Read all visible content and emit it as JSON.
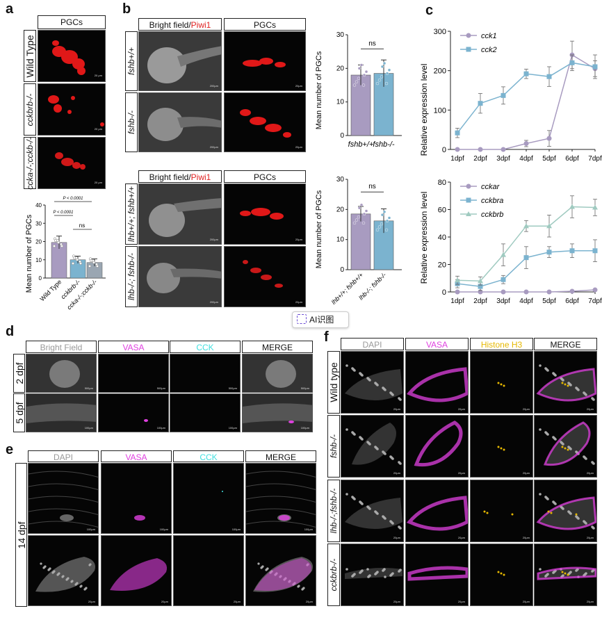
{
  "panels": {
    "a": {
      "label": "a",
      "header": "PGCs",
      "rows": [
        "Wild Type",
        "cckbrb-/-",
        "ccka-/-;cckb-/-"
      ],
      "scalebar": "20 μm",
      "chart_data": {
        "type": "bar",
        "categories": [
          "Wild Type",
          "cckbrb-/-",
          "ccka-/-;cckb-/-"
        ],
        "values": [
          19.5,
          10,
          8.5
        ],
        "errors": [
          3.5,
          2,
          2
        ],
        "ylabel": "Mean number of PGCs",
        "ylim": [
          0,
          40
        ],
        "yticks": [
          0,
          10,
          20,
          30,
          40
        ],
        "significance": [
          "P < 0.0001",
          "P < 0.0001",
          "ns"
        ],
        "colors": [
          "#a89bc0",
          "#7bb3cf",
          "#9aa6b2"
        ]
      }
    },
    "b": {
      "label": "b",
      "headers": {
        "bright_field": "Bright field/",
        "piwi": "Piwi1",
        "pgcs": "PGCs"
      },
      "rows_top": [
        "fshb+/+",
        "fshb-/-"
      ],
      "rows_bottom": [
        "lhb+/+; fshb+/+",
        "lhb-/-; fshb-/-"
      ],
      "scalebar_bf": "200μm",
      "scalebar_pgc": "20μm",
      "chart_top": {
        "type": "bar",
        "categories": [
          "fshb+/+",
          "fshb-/-"
        ],
        "values": [
          18,
          18.5
        ],
        "errors": [
          3,
          4
        ],
        "ylabel": "Mean number of PGCs",
        "ylim": [
          0,
          30
        ],
        "yticks": [
          0,
          10,
          20,
          30
        ],
        "significance": "ns"
      },
      "chart_bottom": {
        "type": "bar",
        "categories": [
          "lhb+/+; fshb+/+",
          "lhb-/-; fshb-/-"
        ],
        "values": [
          18.5,
          16.2
        ],
        "errors": [
          2.5,
          4
        ],
        "ylabel": "Mean number of PGCs",
        "ylim": [
          0,
          30
        ],
        "yticks": [
          0,
          10,
          20,
          30
        ],
        "significance": "ns"
      }
    },
    "c": {
      "label": "c",
      "chart_data": [
        {
          "type": "line",
          "categories": [
            "1dpf",
            "2dpf",
            "3dpf",
            "4dpf",
            "5dpf",
            "6dpf",
            "7dpf"
          ],
          "series": [
            {
              "name": "cck1",
              "values": [
                0,
                0,
                0,
                15,
                28,
                240,
                205
              ],
              "errors": [
                0,
                0,
                0,
                8,
                20,
                35,
                20
              ],
              "color": "#a89bc0",
              "marker": "circle"
            },
            {
              "name": "cck2",
              "values": [
                42,
                117,
                137,
                192,
                185,
                220,
                210
              ],
              "errors": [
                12,
                25,
                22,
                12,
                25,
                20,
                30
              ],
              "color": "#7bb3cf",
              "marker": "square"
            }
          ],
          "ylabel": "Relative expression level",
          "ylim": [
            0,
            300
          ],
          "yticks": [
            0,
            100,
            200,
            300
          ],
          "legend": "top-left"
        },
        {
          "type": "line",
          "categories": [
            "1dpf",
            "2dpf",
            "3dpf",
            "4dpf",
            "5dpf",
            "6dpf",
            "7dpf"
          ],
          "series": [
            {
              "name": "cckar",
              "values": [
                0,
                0,
                0,
                0,
                0,
                0.5,
                1.5
              ],
              "errors": [
                0,
                0,
                0,
                0,
                0,
                0.5,
                0.5
              ],
              "color": "#a89bc0",
              "marker": "circle"
            },
            {
              "name": "cckbra",
              "values": [
                6,
                4,
                9,
                25,
                29,
                30,
                30
              ],
              "errors": [
                3,
                3,
                3,
                8,
                4,
                5,
                8
              ],
              "color": "#7bb3cf",
              "marker": "square"
            },
            {
              "name": "cckbrb",
              "values": [
                8.5,
                8,
                27,
                48,
                48,
                62,
                61.5
              ],
              "errors": [
                3,
                3,
                8,
                4,
                8,
                8,
                6
              ],
              "color": "#9fcac0",
              "marker": "triangle"
            }
          ],
          "ylabel": "Relative expression level",
          "ylim": [
            0,
            80
          ],
          "yticks": [
            0,
            20,
            40,
            60,
            80
          ],
          "legend": "top-left"
        }
      ]
    },
    "d": {
      "label": "d",
      "headers": [
        "Bright Field",
        "VASA",
        "CCK",
        "MERGE"
      ],
      "rows": [
        "2 dpf",
        "5 dpf"
      ],
      "scalebars": [
        "500μm",
        "100μm"
      ]
    },
    "e": {
      "label": "e",
      "headers": [
        "DAPI",
        "VASA",
        "CCK",
        "MERGE"
      ],
      "row": "14 dpf",
      "scalebars": [
        "100μm",
        "20μm"
      ]
    },
    "f": {
      "label": "f",
      "headers": [
        "DAPI",
        "VASA",
        "Histone H3",
        "MERGE"
      ],
      "rows": [
        "Wild type",
        "fshb-/-",
        "lhb-/-;fshb-/-",
        "cckbrb-/-"
      ],
      "scalebar": "20μm"
    }
  },
  "colors": {
    "vasa": "#e040e0",
    "cck": "#40e0e0",
    "histone": "#e6b800",
    "piwi": "#e02020"
  },
  "overlay": {
    "ai_button": "AI识图"
  }
}
